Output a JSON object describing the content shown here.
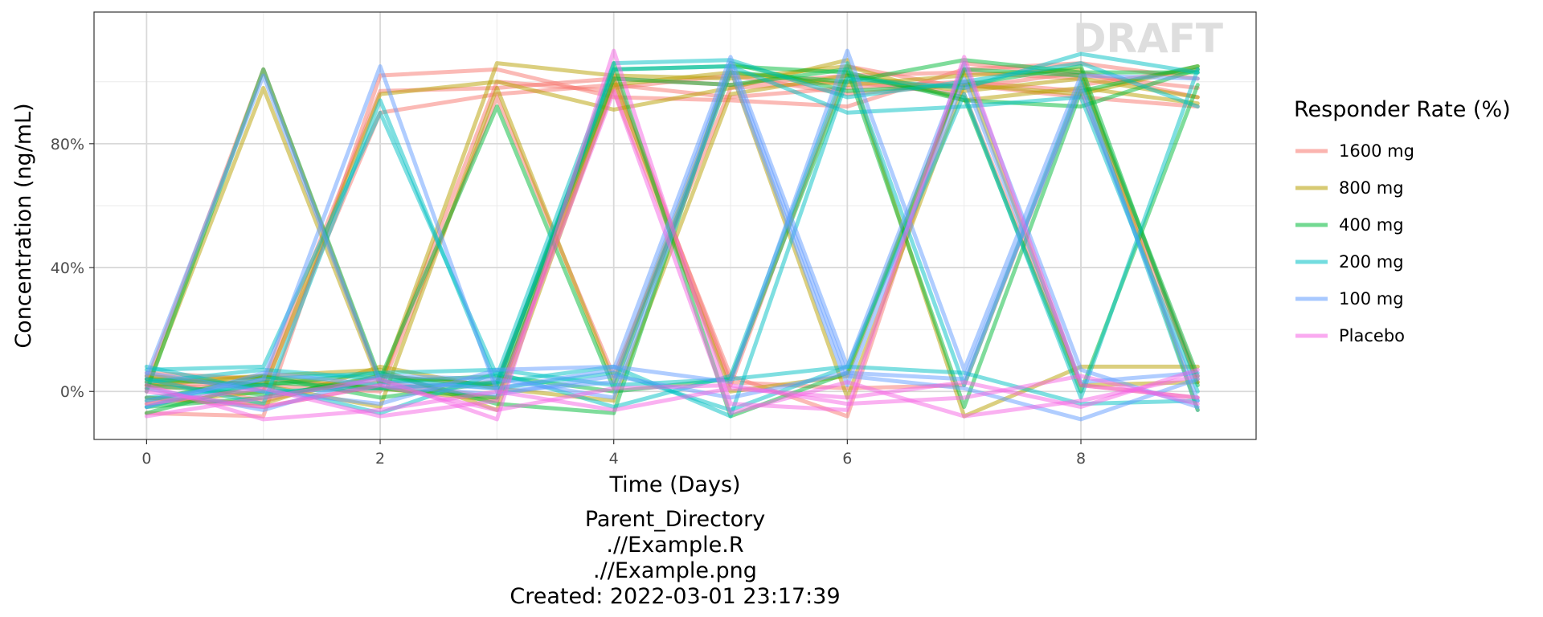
{
  "chart_data": {
    "type": "line",
    "title": "",
    "xlabel": "Time (Days)",
    "ylabel": "Concentration (ng/mL)",
    "xlim": [
      -0.45,
      9.5
    ],
    "ylim": [
      -0.155,
      1.225
    ],
    "x_ticks": [
      0,
      2,
      4,
      6,
      8
    ],
    "y_ticks": [
      0,
      0.4,
      0.8
    ],
    "y_tick_labels": [
      "0%",
      "40%",
      "80%"
    ],
    "grid": true,
    "legend_title": "Responder Rate (%)",
    "legend_position": "right",
    "watermark": "DRAFT",
    "x": [
      0,
      1,
      2,
      3,
      4,
      5,
      6,
      7,
      8,
      9
    ],
    "series": [
      {
        "name": "1600 mg",
        "color": "#F8766D",
        "lines": [
          [
            0.02,
            0.03,
            0.97,
            0.98,
            1.01,
            0.99,
            1.02,
            1.03,
            1.01,
            0.04
          ],
          [
            0.05,
            0.01,
            0.9,
            0.96,
            0.99,
            0.95,
            0.98,
            1.0,
            0.97,
            0.03
          ],
          [
            -0.02,
            -0.05,
            0.02,
            1.0,
            0.97,
            0.02,
            1.05,
            0.98,
            1.03,
            0.95
          ],
          [
            0.03,
            1.04,
            0.03,
            -0.02,
            0.98,
            1.02,
            0.96,
            0.99,
            0.95,
            0.92
          ],
          [
            0.06,
            0.04,
            0.01,
            0.03,
            1.0,
            0.05,
            -0.08,
            1.06,
            1.02,
            0.98
          ],
          [
            -0.07,
            -0.08,
            1.02,
            1.04,
            0.95,
            0.94,
            0.92,
            1.04,
            1.06,
            1.01
          ],
          [
            0.01,
            0.02,
            0.0,
            0.95,
            0.05,
            0.98,
            1.0,
            0.96,
            0.02,
            -0.02
          ],
          [
            0.04,
            -0.03,
            0.05,
            0.02,
            1.03,
            0.03,
            0.01,
            0.02,
            0.99,
            1.04
          ]
        ]
      },
      {
        "name": "800 mg",
        "color": "#B79F00",
        "lines": [
          [
            0.01,
            0.98,
            0.02,
            1.06,
            1.02,
            1.01,
            1.05,
            0.94,
            0.98,
            0.93
          ],
          [
            -0.04,
            0.0,
            0.96,
            1.0,
            0.91,
            0.98,
            1.07,
            -0.08,
            0.08,
            0.08
          ],
          [
            0.02,
            0.05,
            0.07,
            -0.06,
            0.99,
            1.03,
            0.99,
            1.02,
            1.04,
            -0.06
          ],
          [
            0.05,
            0.02,
            -0.05,
            0.98,
            0.03,
            1.04,
            -0.02,
            0.99,
            0.96,
            1.05
          ],
          [
            -0.02,
            -0.04,
            0.08,
            0.01,
            -0.03,
            0.96,
            1.02,
            0.97,
            1.01,
            0.95
          ],
          [
            0.03,
            0.05,
            0.01,
            -0.03,
            1.01,
            0.0,
            0.05,
            1.04,
            0.02,
            0.03
          ]
        ]
      },
      {
        "name": "400 mg",
        "color": "#00BA38",
        "lines": [
          [
            0.0,
            1.04,
            0.04,
            0.92,
            0.01,
            1.03,
            1.0,
            1.07,
            1.03,
            1.03
          ],
          [
            -0.05,
            -0.02,
            0.05,
            0.02,
            1.04,
            1.05,
            1.03,
            0.94,
            0.92,
            1.04
          ],
          [
            0.04,
            0.02,
            0.06,
            -0.04,
            -0.07,
            1.06,
            0.97,
            0.99,
            1.05,
            0.02
          ],
          [
            -0.03,
            0.05,
            -0.02,
            0.03,
            1.01,
            0.99,
            1.04,
            -0.05,
            0.97,
            1.05
          ],
          [
            0.02,
            -0.01,
            0.03,
            0.05,
            0.0,
            0.04,
            1.02,
            0.95,
            0.0,
            0.99
          ],
          [
            -0.07,
            0.03,
            0.01,
            -0.02,
            1.06,
            -0.08,
            0.06,
            1.04,
            1.02,
            0.05
          ]
        ]
      },
      {
        "name": "200 mg",
        "color": "#00BFC4",
        "lines": [
          [
            0.07,
            0.08,
            0.9,
            0.05,
            1.06,
            1.07,
            0.95,
            1.0,
            1.06,
            0.92
          ],
          [
            0.08,
            0.0,
            0.01,
            0.03,
            0.08,
            -0.08,
            1.01,
            0.98,
            1.09,
            1.03
          ],
          [
            -0.05,
            0.04,
            0.06,
            0.07,
            0.02,
            0.04,
            0.08,
            0.06,
            -0.04,
            -0.03
          ],
          [
            0.04,
            -0.04,
            0.94,
            0.02,
            1.04,
            1.05,
            0.9,
            0.92,
            0.95,
            0.0
          ],
          [
            -0.02,
            0.02,
            -0.07,
            0.06,
            -0.05,
            0.05,
            1.06,
            0.02,
            1.0,
            -0.06
          ],
          [
            0.03,
            0.07,
            0.04,
            0.01,
            0.06,
            -0.06,
            0.08,
            0.96,
            -0.02,
            1.04
          ]
        ]
      },
      {
        "name": "100 mg",
        "color": "#619CFF",
        "lines": [
          [
            0.05,
            1.02,
            0.03,
            0.01,
            0.07,
            1.08,
            0.08,
            1.06,
            0.07,
            -0.05
          ],
          [
            -0.03,
            0.04,
            1.05,
            0.0,
            0.03,
            1.06,
            0.05,
            0.01,
            -0.09,
            0.04
          ],
          [
            0.06,
            0.0,
            -0.04,
            0.07,
            0.08,
            0.03,
            1.1,
            0.07,
            1.02,
            1.01
          ],
          [
            0.01,
            -0.06,
            0.05,
            0.04,
            -0.02,
            1.04,
            0.02,
            1.01,
            0.03,
            0.06
          ],
          [
            -0.05,
            0.06,
            0.02,
            -0.01,
            0.05,
            -0.02,
            0.06,
            0.04,
            0.98,
            -0.03
          ]
        ]
      },
      {
        "name": "Placebo",
        "color": "#F564E3",
        "lines": [
          [
            -0.08,
            -0.02,
            0.04,
            -0.09,
            1.1,
            -0.04,
            -0.06,
            1.08,
            0.02,
            -0.02
          ],
          [
            0.02,
            -0.09,
            -0.06,
            0.0,
            -0.06,
            0.01,
            -0.02,
            0.03,
            -0.05,
            0.07
          ],
          [
            -0.04,
            0.01,
            -0.08,
            -0.03,
            0.97,
            -0.07,
            0.03,
            -0.08,
            -0.03,
            0.05
          ],
          [
            0.0,
            -0.05,
            0.02,
            -0.06,
            0.01,
            0.02,
            -0.04,
            -0.02,
            0.05,
            -0.04
          ]
        ]
      }
    ]
  },
  "caption": {
    "line1": "Parent_Directory",
    "line2": ".//Example.R",
    "line3": ".//Example.png",
    "line4": "Created: 2022-03-01 23:17:39"
  }
}
